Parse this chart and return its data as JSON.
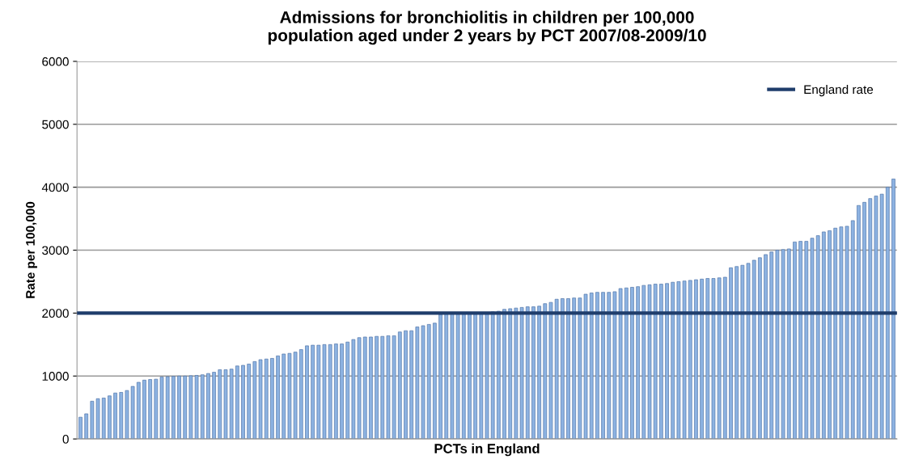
{
  "chart_data": {
    "type": "bar",
    "title": "Admissions for bronchiolitis in children per 100,000\npopulation aged under 2 years by PCT 2007/08-2009/10",
    "xlabel": "PCTs in England",
    "ylabel": "Rate per 100,000",
    "categories": [
      null,
      null,
      null,
      null,
      null,
      null,
      null,
      null,
      null,
      null,
      null,
      null,
      null,
      null,
      null,
      null,
      null,
      null,
      null,
      null,
      null,
      null,
      null,
      null,
      null,
      null,
      null,
      null,
      null,
      null,
      null,
      null,
      null,
      null,
      null,
      null,
      null,
      null,
      null,
      null,
      null,
      null,
      null,
      null,
      null,
      null,
      null,
      null,
      null,
      null,
      null,
      null,
      null,
      null,
      null,
      null,
      null,
      null,
      null,
      null,
      null,
      null,
      null,
      null,
      null,
      null,
      null,
      null,
      null,
      null,
      null,
      null,
      null,
      null,
      null,
      null,
      null,
      null,
      null,
      null,
      null,
      null,
      null,
      null,
      null,
      null,
      null,
      null,
      null,
      null,
      null,
      null,
      null,
      null,
      null,
      null,
      null,
      null,
      null,
      null,
      null,
      null,
      null,
      null,
      null,
      null,
      null,
      null,
      null,
      null,
      null,
      null,
      null,
      null,
      null,
      null,
      null,
      null,
      null,
      null,
      null,
      null,
      null,
      null,
      null,
      null,
      null,
      null,
      null,
      null,
      null,
      null,
      null,
      null,
      null,
      null,
      null,
      null,
      null,
      null,
      null
    ],
    "values": [
      346,
      400,
      600,
      640,
      650,
      685,
      730,
      740,
      770,
      835,
      900,
      935,
      945,
      950,
      985,
      990,
      995,
      1000,
      1000,
      1005,
      1010,
      1020,
      1040,
      1060,
      1100,
      1100,
      1110,
      1160,
      1170,
      1190,
      1230,
      1260,
      1270,
      1280,
      1320,
      1350,
      1360,
      1380,
      1420,
      1480,
      1490,
      1490,
      1500,
      1500,
      1510,
      1510,
      1540,
      1580,
      1610,
      1620,
      1620,
      1630,
      1630,
      1640,
      1640,
      1700,
      1720,
      1720,
      1780,
      1800,
      1820,
      1840,
      1980,
      1990,
      1990,
      2000,
      2000,
      2000,
      2000,
      2010,
      2010,
      2020,
      2030,
      2060,
      2070,
      2080,
      2090,
      2100,
      2100,
      2110,
      2150,
      2170,
      2220,
      2230,
      2230,
      2240,
      2240,
      2300,
      2320,
      2330,
      2330,
      2330,
      2340,
      2390,
      2400,
      2410,
      2420,
      2440,
      2450,
      2460,
      2460,
      2470,
      2490,
      2500,
      2510,
      2520,
      2530,
      2540,
      2550,
      2550,
      2560,
      2570,
      2720,
      2740,
      2760,
      2790,
      2840,
      2880,
      2930,
      2970,
      3000,
      3010,
      3020,
      3130,
      3140,
      3140,
      3190,
      3230,
      3290,
      3310,
      3350,
      3370,
      3380,
      3470,
      3710,
      3760,
      3820,
      3860,
      3890,
      4000,
      4130
    ],
    "color": "#8db3e2",
    "ylim": [
      0,
      6000
    ],
    "yticks": [
      0,
      1000,
      2000,
      3000,
      4000,
      5000,
      6000
    ],
    "grid": "y",
    "tick_labels": "y",
    "legend": "top right",
    "ref_lines": [
      {
        "axis": "y",
        "value": 2000,
        "label": "England rate",
        "color": "#1f3d6b",
        "line_style": "solid"
      }
    ]
  }
}
